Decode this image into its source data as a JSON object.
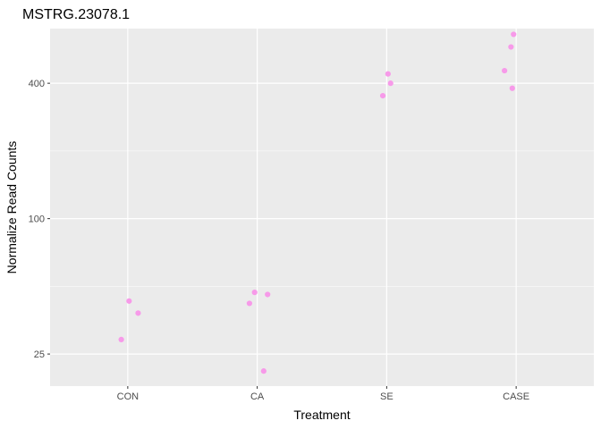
{
  "chart_data": {
    "type": "scatter",
    "title": "MSTRG.23078.1",
    "xlabel": "Treatment",
    "ylabel": "Normalize Read Counts",
    "y_scale": "log",
    "ylim": [
      18,
      700
    ],
    "categories": [
      "CON",
      "CA",
      "SE",
      "CASE"
    ],
    "yticks": [
      {
        "value": 25,
        "label": "25"
      },
      {
        "value": 100,
        "label": "100"
      },
      {
        "value": 400,
        "label": "400"
      }
    ],
    "point_color": "#F79AE9",
    "panel_background": "#EBEBEB",
    "grid": true,
    "series": [
      {
        "name": "CON",
        "points": [
          {
            "jitter": 0.01,
            "y": 43
          },
          {
            "jitter": 0.08,
            "y": 38
          },
          {
            "jitter": -0.05,
            "y": 29
          }
        ]
      },
      {
        "name": "CA",
        "points": [
          {
            "jitter": -0.02,
            "y": 47
          },
          {
            "jitter": 0.08,
            "y": 46
          },
          {
            "jitter": -0.06,
            "y": 42
          },
          {
            "jitter": 0.05,
            "y": 21
          }
        ]
      },
      {
        "name": "SE",
        "points": [
          {
            "jitter": 0.01,
            "y": 440
          },
          {
            "jitter": 0.03,
            "y": 400
          },
          {
            "jitter": -0.03,
            "y": 352
          }
        ]
      },
      {
        "name": "CASE",
        "points": [
          {
            "jitter": -0.02,
            "y": 660
          },
          {
            "jitter": -0.04,
            "y": 580
          },
          {
            "jitter": -0.09,
            "y": 455
          },
          {
            "jitter": -0.03,
            "y": 380
          }
        ]
      }
    ]
  }
}
